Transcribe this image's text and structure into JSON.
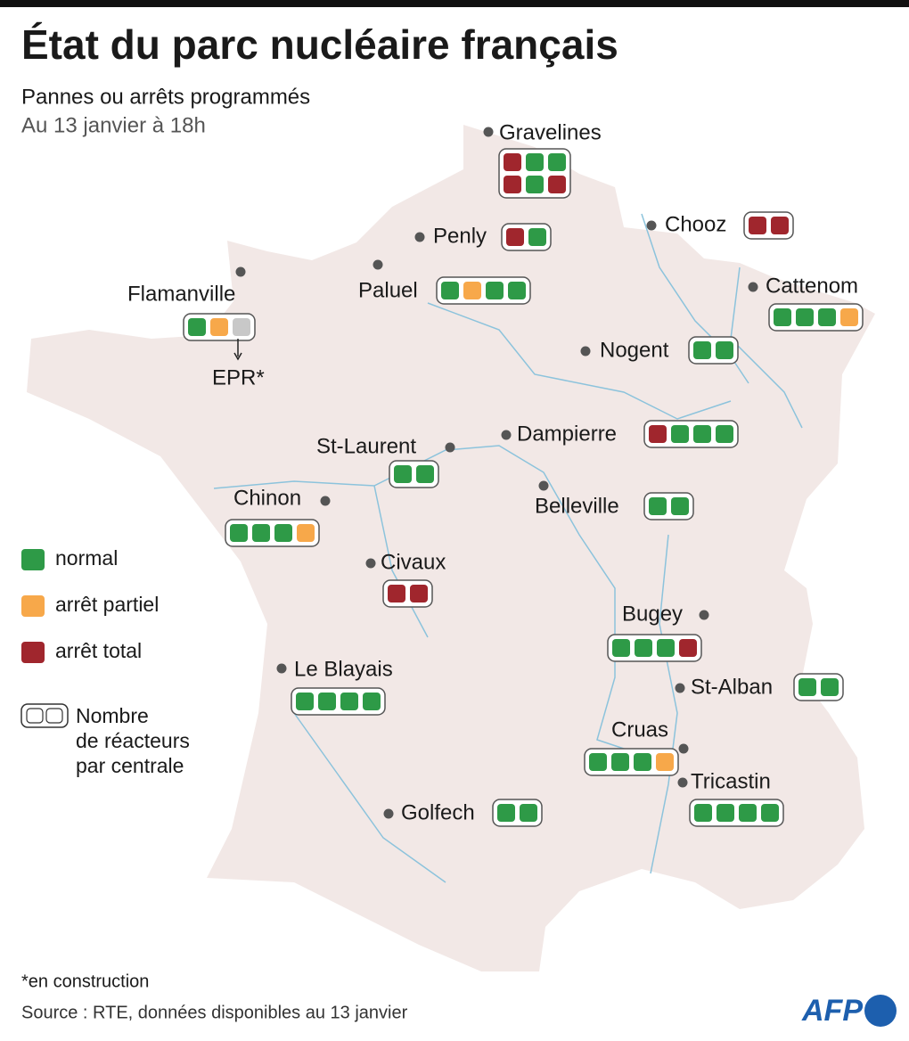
{
  "header": {
    "title": "État du parc nucléaire français",
    "subtitle": "Pannes ou arrêts programmés",
    "date": "Au 13 janvier à 18h"
  },
  "legend": {
    "items": [
      {
        "label": "normal",
        "color": "#2e9a47"
      },
      {
        "label": "arrêt partiel",
        "color": "#f7a84a"
      },
      {
        "label": "arrêt total",
        "color": "#a0262d"
      }
    ],
    "box_note": [
      "Nombre",
      "de réacteurs",
      "par centrale"
    ]
  },
  "plants": [
    {
      "name": "Gravelines",
      "reactors": [
        "#a0262d",
        "#2e9a47",
        "#2e9a47",
        "#a0262d",
        "#2e9a47",
        "#a0262d"
      ]
    },
    {
      "name": "Penly",
      "reactors": [
        "#a0262d",
        "#2e9a47"
      ]
    },
    {
      "name": "Chooz",
      "reactors": [
        "#a0262d",
        "#a0262d"
      ]
    },
    {
      "name": "Paluel",
      "reactors": [
        "#2e9a47",
        "#f7a84a",
        "#2e9a47",
        "#2e9a47"
      ]
    },
    {
      "name": "Flamanville",
      "reactors": [
        "#2e9a47",
        "#f7a84a",
        "#c8c8c8"
      ],
      "note": "EPR*"
    },
    {
      "name": "Cattenom",
      "reactors": [
        "#2e9a47",
        "#2e9a47",
        "#2e9a47",
        "#f7a84a"
      ]
    },
    {
      "name": "Nogent",
      "reactors": [
        "#2e9a47",
        "#2e9a47"
      ]
    },
    {
      "name": "Dampierre",
      "reactors": [
        "#a0262d",
        "#2e9a47",
        "#2e9a47",
        "#2e9a47"
      ]
    },
    {
      "name": "St-Laurent",
      "reactors": [
        "#2e9a47",
        "#2e9a47"
      ]
    },
    {
      "name": "Chinon",
      "reactors": [
        "#2e9a47",
        "#2e9a47",
        "#2e9a47",
        "#f7a84a"
      ]
    },
    {
      "name": "Belleville",
      "reactors": [
        "#2e9a47",
        "#2e9a47"
      ]
    },
    {
      "name": "Civaux",
      "reactors": [
        "#a0262d",
        "#a0262d"
      ]
    },
    {
      "name": "Bugey",
      "reactors": [
        "#2e9a47",
        "#2e9a47",
        "#2e9a47",
        "#a0262d"
      ]
    },
    {
      "name": "St-Alban",
      "reactors": [
        "#2e9a47",
        "#2e9a47"
      ]
    },
    {
      "name": "Le Blayais",
      "reactors": [
        "#2e9a47",
        "#2e9a47",
        "#2e9a47",
        "#2e9a47"
      ]
    },
    {
      "name": "Cruas",
      "reactors": [
        "#2e9a47",
        "#2e9a47",
        "#2e9a47",
        "#f7a84a"
      ]
    },
    {
      "name": "Tricastin",
      "reactors": [
        "#2e9a47",
        "#2e9a47",
        "#2e9a47",
        "#2e9a47"
      ]
    },
    {
      "name": "Golfech",
      "reactors": [
        "#2e9a47",
        "#2e9a47"
      ]
    }
  ],
  "footer": {
    "footnote": "*en construction",
    "source": "Source : RTE, données disponibles au 13 janvier",
    "logo": "AFP"
  }
}
